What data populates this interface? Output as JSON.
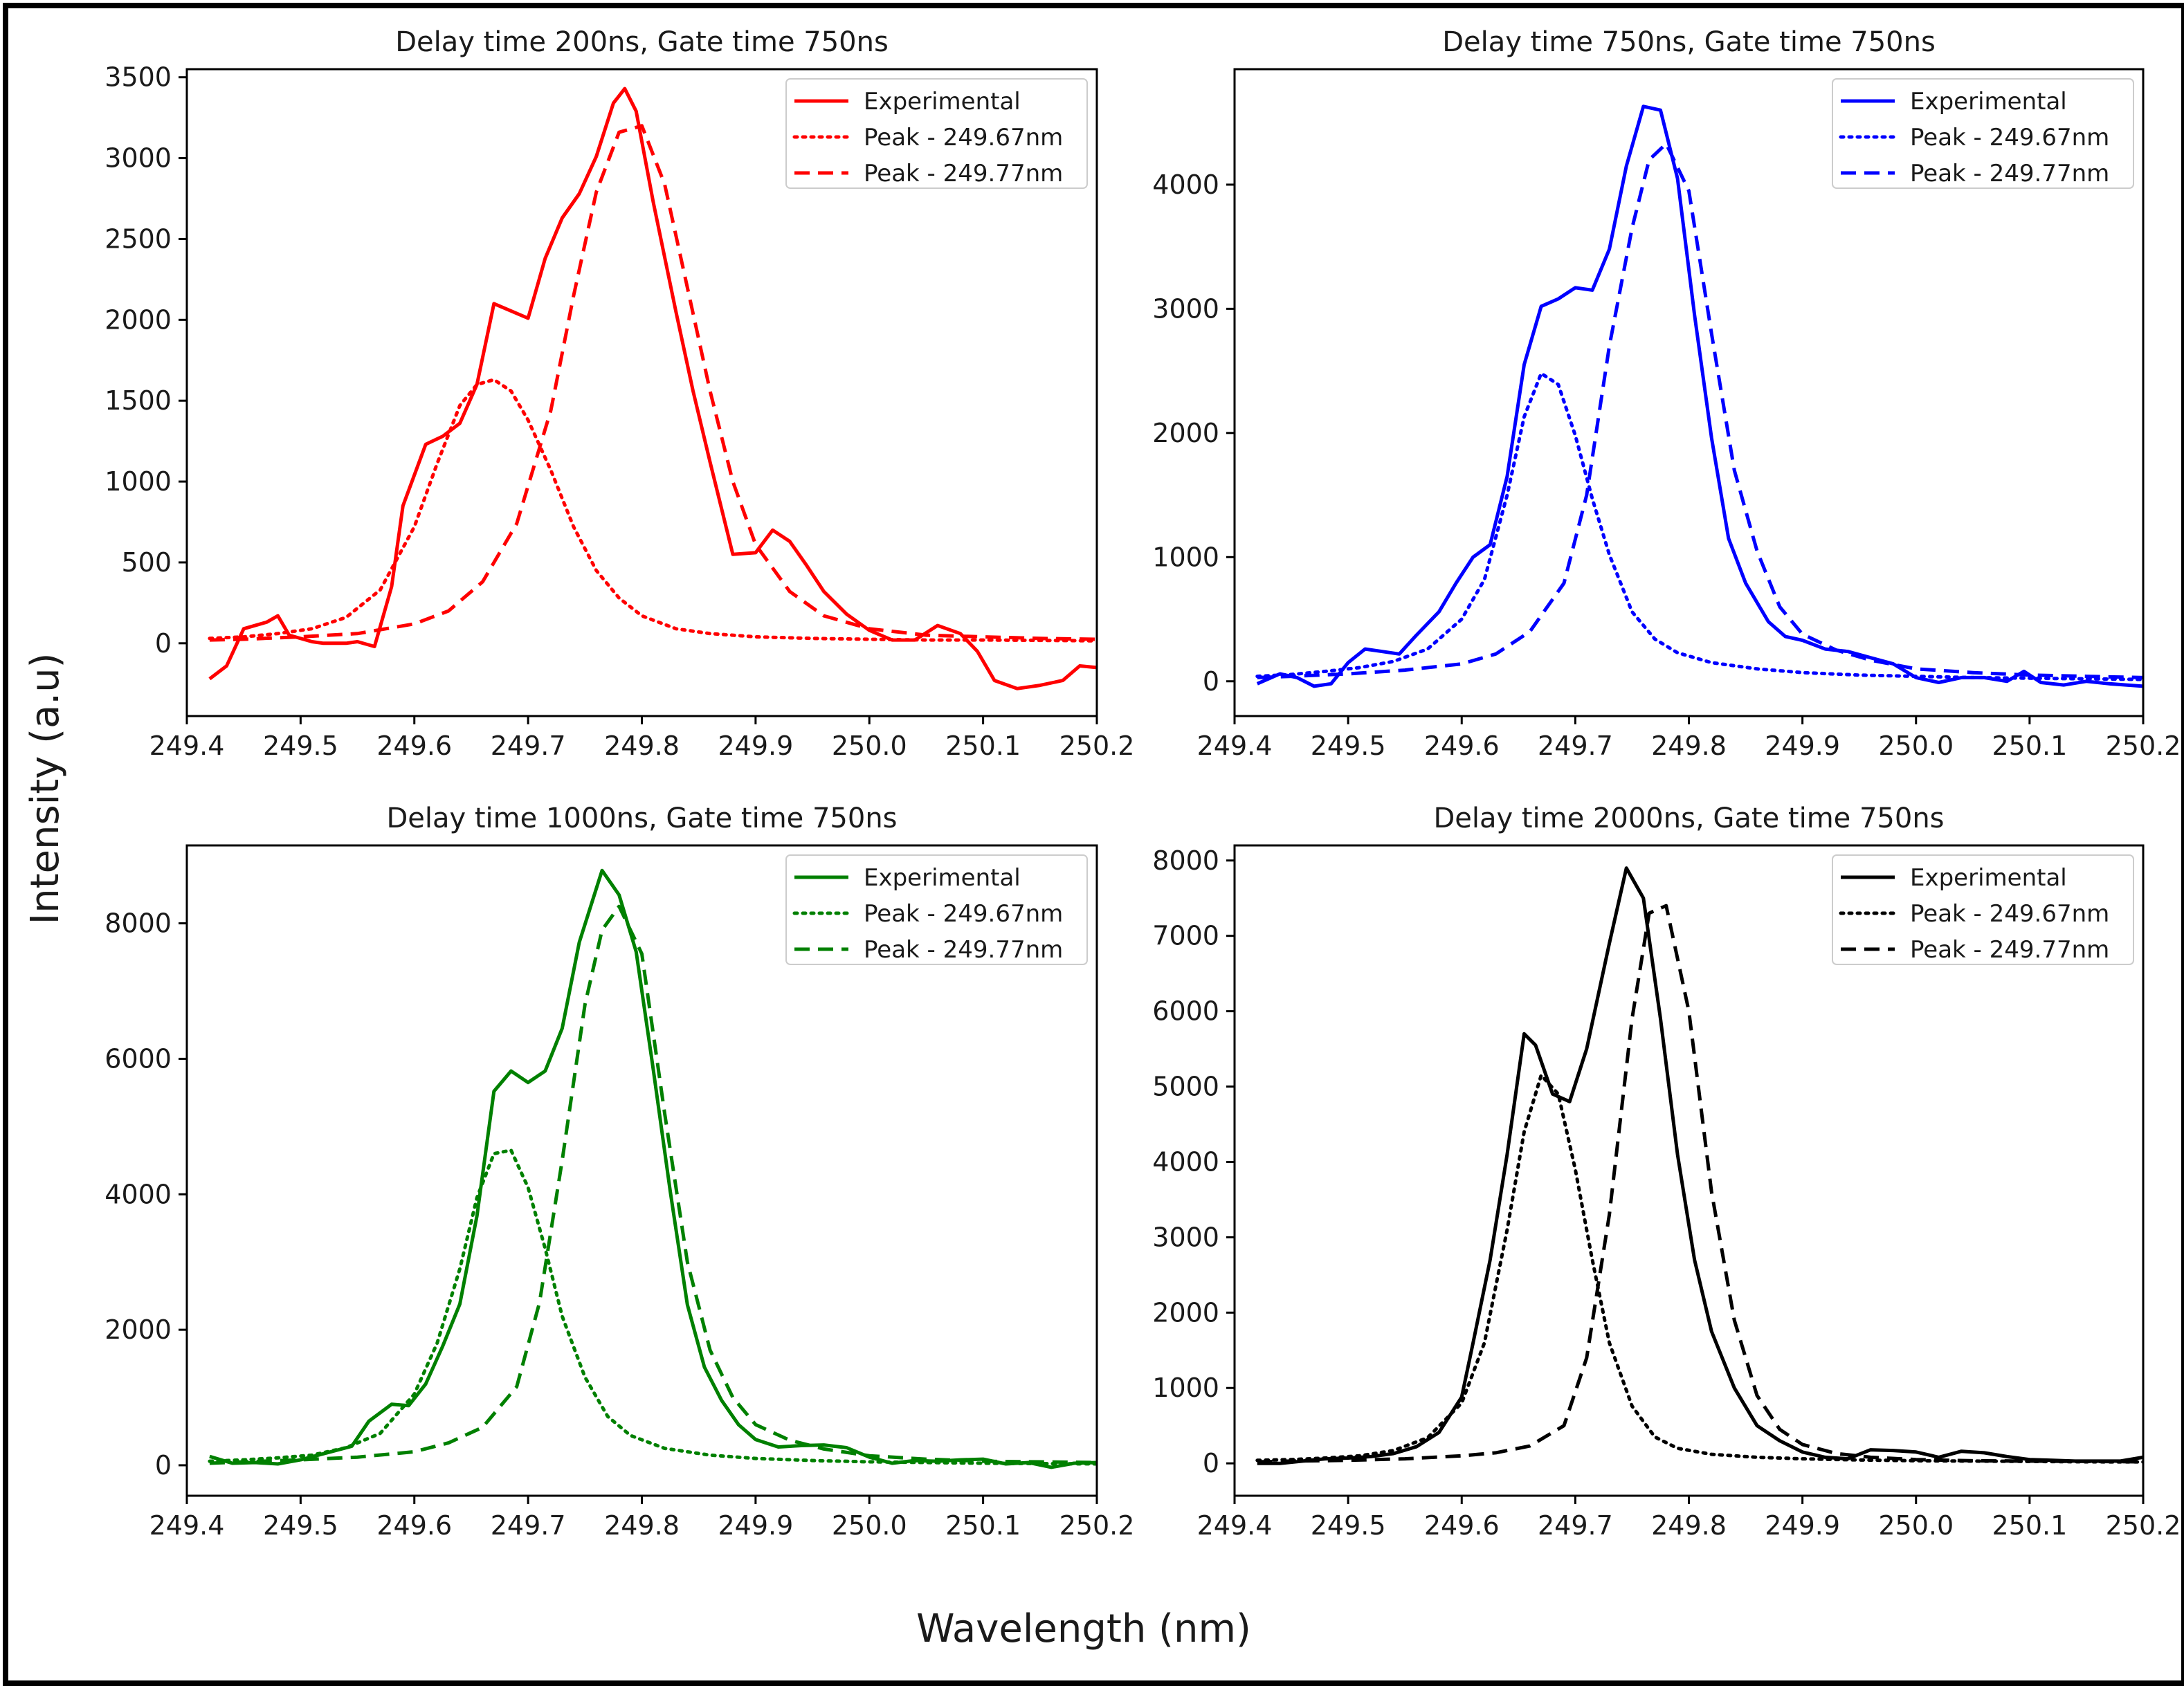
{
  "figure": {
    "xlabel": "Wavelength (nm)",
    "ylabel": "Intensity (a.u)"
  },
  "chart_data": [
    {
      "type": "line",
      "title": "Delay time 200ns, Gate time 750ns",
      "color": "#ff0000",
      "xlim": [
        249.4,
        250.2
      ],
      "ylim": [
        -450,
        3550
      ],
      "xticks": [
        "249.4",
        "249.5",
        "249.6",
        "249.7",
        "249.8",
        "249.9",
        "250.0",
        "250.1",
        "250.2"
      ],
      "yticks": [
        0,
        500,
        1000,
        1500,
        2000,
        2500,
        3000,
        3500
      ],
      "legend": {
        "position": "top-right",
        "entries": [
          "Experimental",
          "Peak - 249.67nm",
          "Peak - 249.77nm"
        ]
      },
      "series": [
        {
          "name": "Experimental",
          "style": "solid",
          "x": [
            249.42,
            249.435,
            249.45,
            249.47,
            249.48,
            249.49,
            249.51,
            249.52,
            249.54,
            249.55,
            249.565,
            249.58,
            249.59,
            249.61,
            249.625,
            249.64,
            249.655,
            249.67,
            249.7,
            249.715,
            249.73,
            249.745,
            249.76,
            249.775,
            249.785,
            249.795,
            249.81,
            249.83,
            249.845,
            249.86,
            249.88,
            249.9,
            249.915,
            249.93,
            249.945,
            249.96,
            249.98,
            250.0,
            250.02,
            250.04,
            250.06,
            250.08,
            250.095,
            250.11,
            250.13,
            250.15,
            250.17,
            250.185,
            250.2
          ],
          "y": [
            -220,
            -140,
            90,
            130,
            170,
            50,
            10,
            0,
            0,
            10,
            -20,
            350,
            850,
            1230,
            1280,
            1360,
            1600,
            2100,
            2010,
            2380,
            2630,
            2780,
            3010,
            3340,
            3430,
            3290,
            2730,
            2050,
            1560,
            1120,
            550,
            560,
            700,
            630,
            480,
            320,
            180,
            80,
            20,
            20,
            110,
            60,
            -50,
            -230,
            -280,
            -260,
            -230,
            -140,
            -150
          ]
        },
        {
          "name": "Peak - 249.67nm",
          "style": "dotted",
          "x": [
            249.42,
            249.45,
            249.48,
            249.51,
            249.54,
            249.57,
            249.6,
            249.62,
            249.64,
            249.655,
            249.67,
            249.685,
            249.7,
            249.72,
            249.74,
            249.76,
            249.78,
            249.8,
            249.83,
            249.86,
            249.9,
            249.95,
            250.0,
            250.05,
            250.1,
            250.15,
            250.2
          ],
          "y": [
            30,
            40,
            60,
            90,
            160,
            330,
            720,
            1110,
            1470,
            1600,
            1630,
            1560,
            1380,
            1070,
            720,
            450,
            280,
            170,
            90,
            60,
            40,
            30,
            25,
            20,
            20,
            18,
            15
          ]
        },
        {
          "name": "Peak - 249.77nm",
          "style": "dashed",
          "x": [
            249.42,
            249.45,
            249.5,
            249.55,
            249.6,
            249.63,
            249.66,
            249.69,
            249.72,
            249.74,
            249.76,
            249.78,
            249.8,
            249.82,
            249.84,
            249.86,
            249.88,
            249.9,
            249.93,
            249.96,
            250.0,
            250.05,
            250.1,
            250.15,
            250.2
          ],
          "y": [
            20,
            25,
            40,
            60,
            120,
            200,
            380,
            740,
            1440,
            2150,
            2790,
            3160,
            3200,
            2840,
            2200,
            1560,
            1000,
            610,
            320,
            170,
            90,
            50,
            40,
            30,
            25
          ]
        }
      ]
    },
    {
      "type": "line",
      "title": "Delay time 750ns, Gate time 750ns",
      "color": "#0000ff",
      "xlim": [
        249.4,
        250.2
      ],
      "ylim": [
        -280,
        4930
      ],
      "xticks": [
        "249.4",
        "249.5",
        "249.6",
        "249.7",
        "249.8",
        "249.9",
        "250.0",
        "250.1",
        "250.2"
      ],
      "yticks": [
        0,
        1000,
        2000,
        3000,
        4000
      ],
      "legend": {
        "position": "top-right",
        "entries": [
          "Experimental",
          "Peak - 249.67nm",
          "Peak - 249.77nm"
        ]
      },
      "series": [
        {
          "name": "Experimental",
          "style": "solid",
          "x": [
            249.42,
            249.44,
            249.455,
            249.47,
            249.485,
            249.5,
            249.515,
            249.53,
            249.545,
            249.56,
            249.58,
            249.595,
            249.61,
            249.625,
            249.64,
            249.655,
            249.67,
            249.685,
            249.7,
            249.715,
            249.73,
            249.745,
            249.76,
            249.775,
            249.79,
            249.805,
            249.82,
            249.835,
            249.85,
            249.87,
            249.885,
            249.9,
            249.92,
            249.94,
            249.96,
            249.98,
            250.0,
            250.02,
            250.04,
            250.06,
            250.08,
            250.095,
            250.11,
            250.13,
            250.15,
            250.17,
            250.185,
            250.2
          ],
          "y": [
            -20,
            60,
            30,
            -40,
            -20,
            150,
            260,
            240,
            220,
            370,
            560,
            790,
            1000,
            1100,
            1650,
            2550,
            3020,
            3080,
            3170,
            3150,
            3480,
            4150,
            4630,
            4600,
            4050,
            2950,
            1960,
            1150,
            790,
            480,
            360,
            330,
            260,
            240,
            190,
            140,
            30,
            -10,
            30,
            30,
            0,
            80,
            -10,
            -30,
            0,
            -20,
            -30,
            -40
          ]
        },
        {
          "name": "Peak - 249.67nm",
          "style": "dotted",
          "x": [
            249.42,
            249.45,
            249.48,
            249.51,
            249.54,
            249.57,
            249.6,
            249.62,
            249.64,
            249.655,
            249.67,
            249.685,
            249.7,
            249.715,
            249.73,
            249.75,
            249.77,
            249.79,
            249.82,
            249.86,
            249.9,
            249.95,
            250.0,
            250.05,
            250.1,
            250.15,
            250.2
          ],
          "y": [
            40,
            55,
            80,
            110,
            160,
            260,
            500,
            820,
            1500,
            2130,
            2480,
            2390,
            1980,
            1470,
            1020,
            560,
            340,
            230,
            150,
            100,
            70,
            50,
            40,
            30,
            25,
            20,
            15
          ]
        },
        {
          "name": "Peak - 249.77nm",
          "style": "dashed",
          "x": [
            249.42,
            249.45,
            249.5,
            249.55,
            249.6,
            249.63,
            249.66,
            249.69,
            249.71,
            249.73,
            249.75,
            249.765,
            249.78,
            249.8,
            249.82,
            249.84,
            249.86,
            249.88,
            249.9,
            249.93,
            249.96,
            250.0,
            250.05,
            250.1,
            250.15,
            250.2
          ],
          "y": [
            30,
            40,
            60,
            90,
            140,
            220,
            400,
            790,
            1500,
            2700,
            3650,
            4200,
            4330,
            3950,
            2800,
            1700,
            1050,
            600,
            380,
            250,
            170,
            100,
            70,
            50,
            40,
            30
          ]
        }
      ]
    },
    {
      "type": "line",
      "title": "Delay time 1000ns, Gate time 750ns",
      "color": "#008000",
      "xlim": [
        249.4,
        250.2
      ],
      "ylim": [
        -450,
        9150
      ],
      "xticks": [
        "249.4",
        "249.5",
        "249.6",
        "249.7",
        "249.8",
        "249.9",
        "250.0",
        "250.1",
        "250.2"
      ],
      "yticks": [
        0,
        2000,
        4000,
        6000,
        8000
      ],
      "legend": {
        "position": "top-right",
        "entries": [
          "Experimental",
          "Peak - 249.67nm",
          "Peak - 249.77nm"
        ]
      },
      "series": [
        {
          "name": "Experimental",
          "style": "solid",
          "x": [
            249.42,
            249.44,
            249.46,
            249.48,
            249.5,
            249.52,
            249.545,
            249.56,
            249.58,
            249.595,
            249.61,
            249.625,
            249.64,
            249.655,
            249.67,
            249.685,
            249.7,
            249.715,
            249.73,
            249.745,
            249.765,
            249.78,
            249.795,
            249.81,
            249.825,
            249.84,
            249.855,
            249.87,
            249.885,
            249.9,
            249.92,
            249.94,
            249.96,
            249.98,
            250.0,
            250.02,
            250.04,
            250.06,
            250.08,
            250.1,
            250.12,
            250.14,
            250.16,
            250.18,
            250.2
          ],
          "y": [
            130,
            30,
            40,
            20,
            80,
            170,
            280,
            650,
            900,
            880,
            1200,
            1760,
            2380,
            3680,
            5520,
            5820,
            5650,
            5820,
            6450,
            7720,
            8780,
            8420,
            7580,
            5850,
            4040,
            2370,
            1450,
            960,
            600,
            380,
            270,
            290,
            300,
            260,
            120,
            30,
            70,
            60,
            80,
            90,
            20,
            40,
            -30,
            30,
            40
          ]
        },
        {
          "name": "Peak - 249.67nm",
          "style": "dotted",
          "x": [
            249.42,
            249.45,
            249.48,
            249.51,
            249.54,
            249.57,
            249.6,
            249.62,
            249.64,
            249.655,
            249.67,
            249.685,
            249.7,
            249.715,
            249.73,
            249.75,
            249.77,
            249.79,
            249.82,
            249.86,
            249.9,
            249.95,
            250.0,
            250.05,
            250.1,
            250.15,
            250.2
          ],
          "y": [
            60,
            80,
            110,
            150,
            260,
            470,
            1050,
            1800,
            2900,
            3950,
            4600,
            4650,
            4100,
            3200,
            2200,
            1300,
            720,
            440,
            250,
            150,
            100,
            70,
            50,
            40,
            30,
            25,
            20
          ]
        },
        {
          "name": "Peak - 249.77nm",
          "style": "dashed",
          "x": [
            249.42,
            249.45,
            249.5,
            249.55,
            249.6,
            249.63,
            249.66,
            249.69,
            249.71,
            249.73,
            249.75,
            249.765,
            249.78,
            249.8,
            249.82,
            249.84,
            249.86,
            249.88,
            249.9,
            249.93,
            249.96,
            250.0,
            250.05,
            250.1,
            250.15,
            250.2
          ],
          "y": [
            30,
            50,
            80,
            120,
            200,
            330,
            560,
            1160,
            2400,
            4500,
            6800,
            7900,
            8250,
            7550,
            5200,
            3000,
            1700,
            1000,
            600,
            370,
            240,
            140,
            90,
            60,
            50,
            40
          ]
        }
      ]
    },
    {
      "type": "line",
      "title": "Delay time 2000ns, Gate time 750ns",
      "color": "#000000",
      "xlim": [
        249.4,
        250.2
      ],
      "ylim": [
        -430,
        8200
      ],
      "xticks": [
        "249.4",
        "249.5",
        "249.6",
        "249.7",
        "249.8",
        "249.9",
        "250.0",
        "250.1",
        "250.2"
      ],
      "yticks": [
        0,
        1000,
        2000,
        3000,
        4000,
        5000,
        6000,
        7000,
        8000
      ],
      "legend": {
        "position": "top-right",
        "entries": [
          "Experimental",
          "Peak - 249.67nm",
          "Peak - 249.77nm"
        ]
      },
      "series": [
        {
          "name": "Experimental",
          "style": "solid",
          "x": [
            249.42,
            249.44,
            249.46,
            249.48,
            249.5,
            249.52,
            249.54,
            249.56,
            249.58,
            249.6,
            249.61,
            249.625,
            249.64,
            249.655,
            249.665,
            249.68,
            249.695,
            249.71,
            249.73,
            249.745,
            249.76,
            249.775,
            249.79,
            249.805,
            249.82,
            249.84,
            249.86,
            249.88,
            249.9,
            249.92,
            249.94,
            249.96,
            249.98,
            250.0,
            250.02,
            250.04,
            250.06,
            250.08,
            250.1,
            250.12,
            250.14,
            250.16,
            250.18,
            250.2
          ],
          "y": [
            0,
            0,
            30,
            60,
            70,
            90,
            130,
            220,
            410,
            880,
            1600,
            2700,
            4100,
            5700,
            5550,
            4900,
            4800,
            5500,
            6900,
            7900,
            7500,
            5900,
            4100,
            2700,
            1750,
            1000,
            500,
            300,
            150,
            80,
            60,
            180,
            170,
            150,
            80,
            160,
            140,
            90,
            50,
            40,
            30,
            30,
            30,
            80
          ]
        },
        {
          "name": "Peak - 249.67nm",
          "style": "dotted",
          "x": [
            249.42,
            249.45,
            249.48,
            249.51,
            249.54,
            249.57,
            249.6,
            249.62,
            249.64,
            249.655,
            249.67,
            249.685,
            249.7,
            249.715,
            249.73,
            249.75,
            249.77,
            249.79,
            249.82,
            249.86,
            249.9,
            249.95,
            250.0,
            250.05,
            250.1,
            250.15,
            250.2
          ],
          "y": [
            40,
            50,
            70,
            100,
            170,
            340,
            800,
            1600,
            3100,
            4400,
            5150,
            4900,
            3900,
            2700,
            1600,
            760,
            350,
            200,
            120,
            80,
            60,
            45,
            35,
            30,
            25,
            20,
            18
          ]
        },
        {
          "name": "Peak - 249.77nm",
          "style": "dashed",
          "x": [
            249.42,
            249.45,
            249.5,
            249.55,
            249.6,
            249.63,
            249.66,
            249.69,
            249.71,
            249.73,
            249.75,
            249.765,
            249.78,
            249.8,
            249.82,
            249.84,
            249.86,
            249.88,
            249.9,
            249.93,
            249.96,
            250.0,
            250.05,
            250.1,
            250.15,
            250.2
          ],
          "y": [
            20,
            30,
            40,
            60,
            100,
            140,
            230,
            500,
            1400,
            3300,
            5900,
            7300,
            7400,
            6000,
            3600,
            1900,
            900,
            450,
            250,
            130,
            80,
            50,
            35,
            30,
            25,
            20
          ]
        }
      ]
    }
  ]
}
